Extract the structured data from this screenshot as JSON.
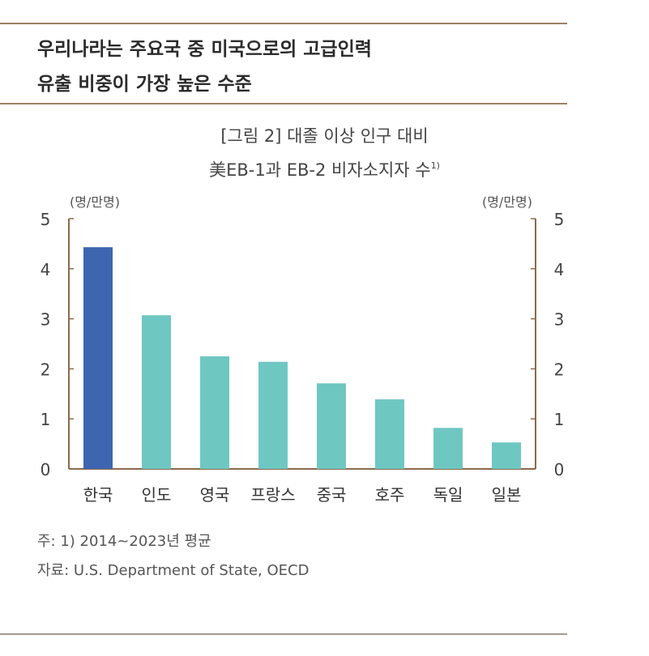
{
  "headline": {
    "line1": "우리나라는 주요국 중 미국으로의 고급인력",
    "line2": "유출 비중이 가장 높은 수준"
  },
  "chart_data": {
    "type": "bar",
    "title_line1": "[그림 2] 대졸 이상 인구 대비",
    "title_line2": "美EB-1과 EB-2 비자소지자 수",
    "title_footnote": "1)",
    "unit_left": "(명/만명)",
    "unit_right": "(명/만명)",
    "ylim": [
      0,
      5
    ],
    "yticks": [
      "0",
      "1",
      "2",
      "3",
      "4",
      "5"
    ],
    "categories": [
      "한국",
      "인도",
      "영국",
      "프랑스",
      "중국",
      "호주",
      "독일",
      "일본"
    ],
    "values": [
      4.43,
      3.07,
      2.25,
      2.14,
      1.71,
      1.39,
      0.82,
      0.53
    ],
    "colors": {
      "highlight": "#3e65b0",
      "default": "#6fc7c2",
      "axis": "#8b6a4b"
    },
    "grid": false
  },
  "notes": {
    "note": "주: 1) 2014~2023년 평균",
    "source": "자료: U.S. Department of State, OECD"
  }
}
